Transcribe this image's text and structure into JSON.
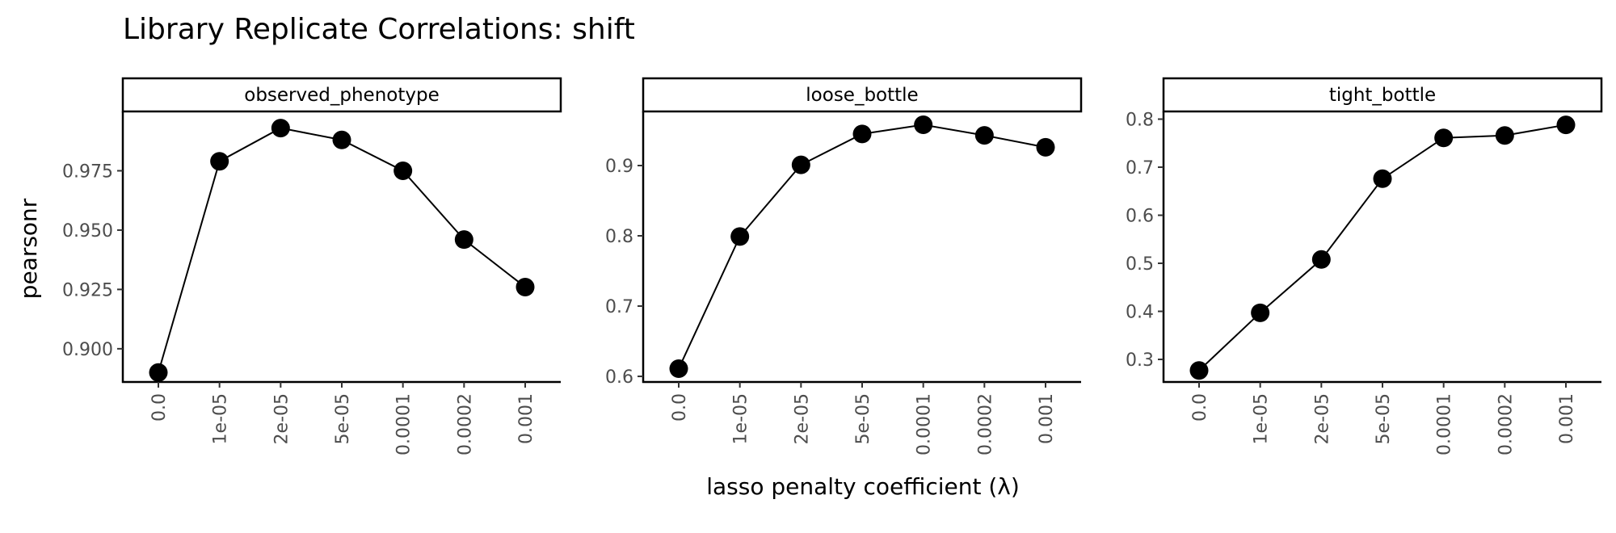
{
  "title": "Library Replicate Correlations: shift",
  "ylabel": "pearsonr",
  "xlabel": "lasso penalty coefficient (λ)",
  "chart_data": [
    {
      "type": "line",
      "facet": "observed_phenotype",
      "categories": [
        "0.0",
        "1e-05",
        "2e-05",
        "5e-05",
        "0.0001",
        "0.0002",
        "0.001"
      ],
      "values": [
        0.89,
        0.979,
        0.993,
        0.988,
        0.975,
        0.946,
        0.926
      ],
      "ylim": [
        0.886,
        1.0
      ],
      "yticks": [
        "0.900",
        "0.925",
        "0.950",
        "0.975"
      ],
      "ytick_values": [
        0.9,
        0.925,
        0.95,
        0.975
      ]
    },
    {
      "type": "line",
      "facet": "loose_bottle",
      "categories": [
        "0.0",
        "1e-05",
        "2e-05",
        "5e-05",
        "0.0001",
        "0.0002",
        "0.001"
      ],
      "values": [
        0.611,
        0.799,
        0.901,
        0.945,
        0.958,
        0.943,
        0.926
      ],
      "ylim": [
        0.592,
        0.977
      ],
      "yticks": [
        "0.6",
        "0.7",
        "0.8",
        "0.9"
      ],
      "ytick_values": [
        0.6,
        0.7,
        0.8,
        0.9
      ]
    },
    {
      "type": "line",
      "facet": "tight_bottle",
      "categories": [
        "0.0",
        "1e-05",
        "2e-05",
        "5e-05",
        "0.0001",
        "0.0002",
        "0.001"
      ],
      "values": [
        0.277,
        0.397,
        0.508,
        0.676,
        0.761,
        0.766,
        0.788
      ],
      "ylim": [
        0.253,
        0.816
      ],
      "yticks": [
        "0.3",
        "0.4",
        "0.5",
        "0.6",
        "0.7",
        "0.8"
      ],
      "ytick_values": [
        0.3,
        0.4,
        0.5,
        0.6,
        0.7,
        0.8
      ]
    }
  ]
}
